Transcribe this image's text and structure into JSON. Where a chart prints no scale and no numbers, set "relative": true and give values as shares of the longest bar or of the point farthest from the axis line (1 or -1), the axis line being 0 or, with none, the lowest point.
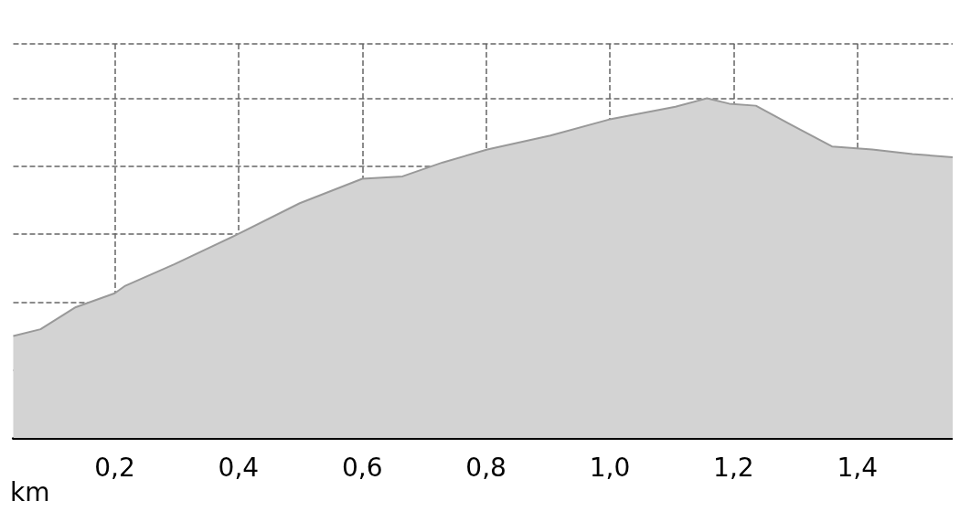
{
  "chart_data": {
    "type": "area",
    "xlabel": "km",
    "relative": true,
    "grid": true,
    "xlim": [
      0.036,
      1.554
    ],
    "xticks": [
      {
        "value": 0.2,
        "label": "0,2"
      },
      {
        "value": 0.4,
        "label": "0,4"
      },
      {
        "value": 0.6,
        "label": "0,6"
      },
      {
        "value": 0.8,
        "label": "0,8"
      },
      {
        "value": 1.0,
        "label": "1,0"
      },
      {
        "value": 1.2,
        "label": "1,2"
      },
      {
        "value": 1.4,
        "label": "1,4"
      }
    ],
    "x": [
      0.036,
      0.08,
      0.137,
      0.2,
      0.217,
      0.296,
      0.398,
      0.499,
      0.6,
      0.665,
      0.73,
      0.802,
      0.904,
      0.998,
      1.106,
      1.157,
      1.193,
      1.236,
      1.294,
      1.359,
      1.424,
      1.489,
      1.554
    ],
    "series": [
      {
        "color": "#999999",
        "values": [
          0.3,
          0.32,
          0.385,
          0.426,
          0.448,
          0.511,
          0.599,
          0.691,
          0.763,
          0.77,
          0.811,
          0.849,
          0.89,
          0.937,
          0.975,
          1.0,
          0.984,
          0.978,
          0.921,
          0.858,
          0.849,
          0.836,
          0.826
        ]
      }
    ]
  }
}
